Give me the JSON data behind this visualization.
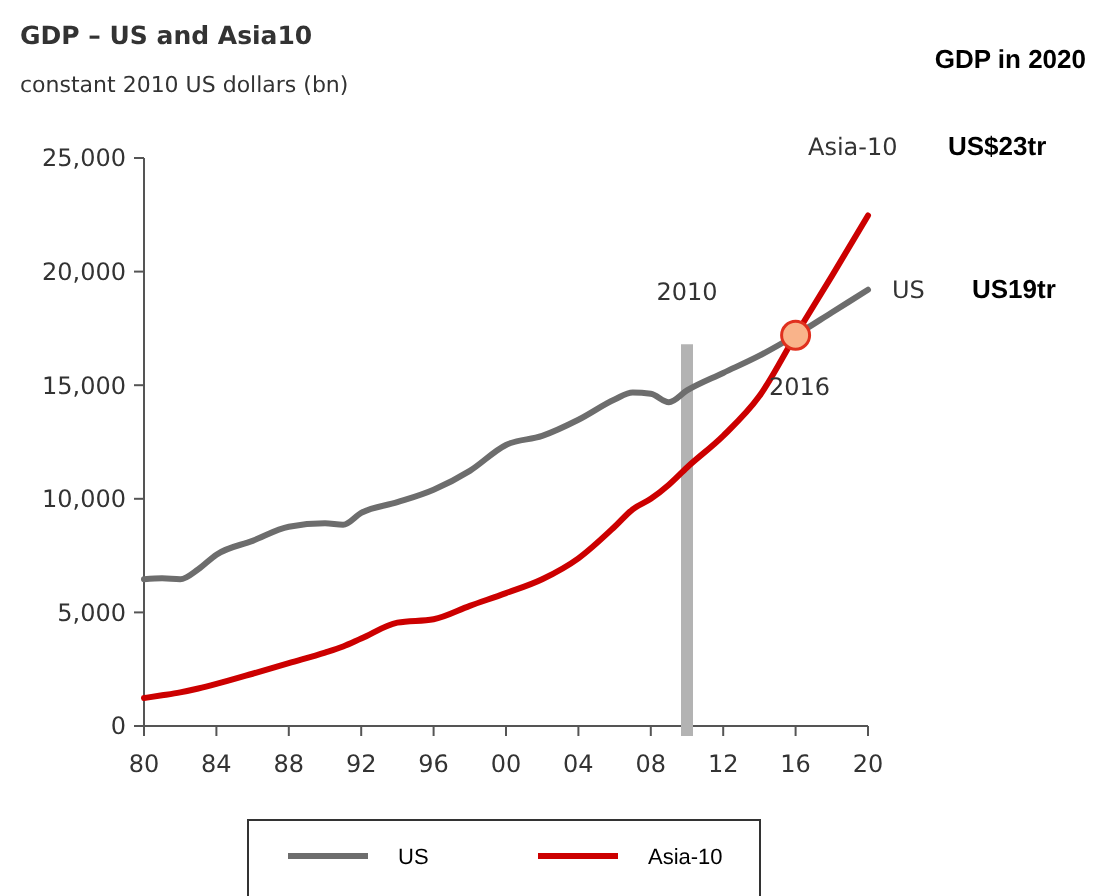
{
  "chart_data": {
    "type": "line",
    "title": "GDP – US and Asia10",
    "subtitle": "constant 2010 US dollars (bn)",
    "x": [
      1980,
      1981,
      1982,
      1983,
      1984,
      1986,
      1988,
      1990,
      1991,
      1992,
      1994,
      1996,
      1998,
      2000,
      2002,
      2004,
      2006,
      2007,
      2008,
      2009,
      2010,
      2012,
      2014,
      2016,
      2018,
      2020
    ],
    "series": [
      {
        "name": "US",
        "color": "#6d6d6d",
        "values": [
          6460,
          6500,
          6460,
          6900,
          7540,
          8150,
          8770,
          8920,
          8860,
          9380,
          9850,
          10400,
          11230,
          12370,
          12770,
          13480,
          14370,
          14680,
          14620,
          14250,
          14770,
          15540,
          16300,
          17200,
          18200,
          19200
        ]
      },
      {
        "name": "Asia-10",
        "color": "#cc0000",
        "values": [
          1230,
          1350,
          1480,
          1650,
          1850,
          2300,
          2770,
          3230,
          3500,
          3850,
          4550,
          4700,
          5290,
          5850,
          6460,
          7380,
          8770,
          9540,
          10000,
          10620,
          11380,
          12770,
          14520,
          17200,
          19800,
          22470
        ]
      }
    ],
    "xlim": [
      1980,
      2020
    ],
    "xticks": [
      {
        "value": 1980,
        "label": "80"
      },
      {
        "value": 1984,
        "label": "84"
      },
      {
        "value": 1988,
        "label": "88"
      },
      {
        "value": 1992,
        "label": "92"
      },
      {
        "value": 1996,
        "label": "96"
      },
      {
        "value": 2000,
        "label": "00"
      },
      {
        "value": 2004,
        "label": "04"
      },
      {
        "value": 2008,
        "label": "08"
      },
      {
        "value": 2012,
        "label": "12"
      },
      {
        "value": 2016,
        "label": "16"
      },
      {
        "value": 2020,
        "label": "20"
      }
    ],
    "ylim": [
      0,
      25000
    ],
    "yticks": [
      {
        "value": 0,
        "label": "0"
      },
      {
        "value": 5000,
        "label": "5,000"
      },
      {
        "value": 10000,
        "label": "10,000"
      },
      {
        "value": 15000,
        "label": "15,000"
      },
      {
        "value": 20000,
        "label": "20,000"
      },
      {
        "value": 25000,
        "label": "25,000"
      }
    ],
    "ref_lines": [
      {
        "axis": "x",
        "value": 2010,
        "label": "2010",
        "color": "#b3b3b3"
      }
    ],
    "annotations": [
      "GDP in 2020",
      "US19tr",
      "US$23tr",
      {
        "text": "2016",
        "x": 2016,
        "y": 17200
      }
    ],
    "grid": false,
    "legend": "bottom",
    "marker": "none",
    "line_style": "solid"
  }
}
